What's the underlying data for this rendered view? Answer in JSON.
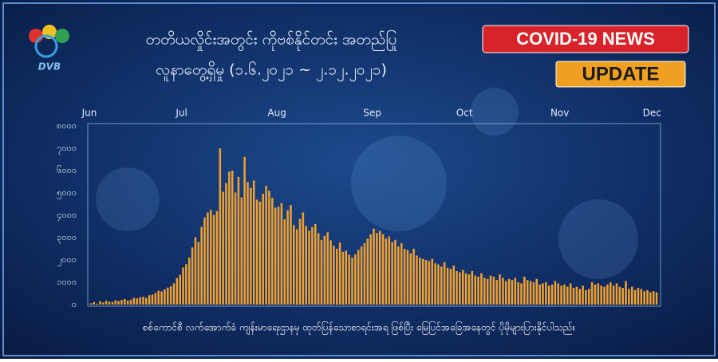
{
  "chart_data": {
    "type": "bar",
    "title": "တတိယလှိုင်းအတွင်း ကိုဗစ်နိုင်တင်း အတည်ပြု",
    "subtitle": "လူနာတွေ့ရှိမှု (၁.၆.၂၀၂၁ ~ ၂.၁၂.၂၀၂၁)",
    "logo_text": "DVB",
    "badge": [
      "COVID-19 NEWS",
      "UPDATE"
    ],
    "footnote": "စစ်ကောင်စီ လက်အောက်ခံ ကျန်းမာရေးဌာနမှ ထုတ်ပြန်သောစာရင်းအရ ဖြစ်ပြီး မြေပြင်အခြေအနေတွင် ပိုမိုများပြားနိုင်ပါသည်။",
    "color": "#f0a030",
    "grid": false,
    "ylim": [
      0,
      8000
    ],
    "yticks": [
      {
        "value": 0,
        "label": "၀"
      },
      {
        "value": 1000,
        "label": "၁၀၀၀"
      },
      {
        "value": 2000,
        "label": "၂၀၀၀"
      },
      {
        "value": 3000,
        "label": "၃၀၀၀"
      },
      {
        "value": 4000,
        "label": "၄၀၀၀"
      },
      {
        "value": 5000,
        "label": "၅၀၀၀"
      },
      {
        "value": 6000,
        "label": "၆၀၀၀"
      },
      {
        "value": 7000,
        "label": "၇၀၀၀"
      },
      {
        "value": 8000,
        "label": "၈၀၀၀"
      }
    ],
    "categories": [
      "Jun",
      null,
      null,
      null,
      null,
      null,
      null,
      null,
      null,
      null,
      null,
      null,
      null,
      null,
      null,
      null,
      null,
      null,
      null,
      null,
      null,
      null,
      null,
      null,
      null,
      null,
      null,
      null,
      null,
      null,
      "Jul",
      null,
      null,
      null,
      null,
      null,
      null,
      null,
      null,
      null,
      null,
      null,
      null,
      null,
      null,
      null,
      null,
      null,
      null,
      null,
      null,
      null,
      null,
      null,
      null,
      null,
      null,
      null,
      null,
      null,
      null,
      "Aug",
      null,
      null,
      null,
      null,
      null,
      null,
      null,
      null,
      null,
      null,
      null,
      null,
      null,
      null,
      null,
      null,
      null,
      null,
      null,
      null,
      null,
      null,
      null,
      null,
      null,
      null,
      null,
      null,
      null,
      null,
      "Sep",
      null,
      null,
      null,
      null,
      null,
      null,
      null,
      null,
      null,
      null,
      null,
      null,
      null,
      null,
      null,
      null,
      null,
      null,
      null,
      null,
      null,
      null,
      null,
      null,
      null,
      null,
      null,
      null,
      null,
      "Oct",
      null,
      null,
      null,
      null,
      null,
      null,
      null,
      null,
      null,
      null,
      null,
      null,
      null,
      null,
      null,
      null,
      null,
      null,
      null,
      null,
      null,
      null,
      null,
      null,
      null,
      null,
      null,
      null,
      null,
      null,
      "Nov",
      null,
      null,
      null,
      null,
      null,
      null,
      null,
      null,
      null,
      null,
      null,
      null,
      null,
      null,
      null,
      null,
      null,
      null,
      null,
      null,
      null,
      null,
      null,
      null,
      null,
      null,
      null,
      null,
      null,
      "Dec",
      null
    ],
    "values": [
      60,
      110,
      40,
      150,
      90,
      170,
      130,
      120,
      190,
      160,
      210,
      250,
      180,
      220,
      300,
      280,
      330,
      350,
      300,
      420,
      450,
      520,
      620,
      590,
      680,
      760,
      820,
      950,
      1190,
      1330,
      1660,
      1810,
      2100,
      2560,
      3020,
      2810,
      3480,
      3900,
      4130,
      4240,
      4010,
      4190,
      7000,
      5050,
      5440,
      5950,
      6000,
      5020,
      5720,
      4800,
      6620,
      5490,
      5230,
      5560,
      4700,
      4610,
      4960,
      5320,
      5100,
      4780,
      4340,
      4390,
      4550,
      3820,
      4230,
      4460,
      3560,
      3380,
      3840,
      4130,
      3520,
      3310,
      3470,
      3610,
      3200,
      2900,
      3080,
      3240,
      2880,
      2630,
      2500,
      2780,
      2360,
      2410,
      2230,
      2100,
      2250,
      2450,
      2600,
      2750,
      2950,
      3150,
      3400,
      3200,
      3300,
      3150,
      2950,
      3050,
      2800,
      2900,
      2600,
      2750,
      2500,
      2450,
      2300,
      2500,
      2200,
      2100,
      2050,
      2000,
      1950,
      2050,
      1850,
      1800,
      1700,
      1900,
      1650,
      1600,
      1750,
      1500,
      1450,
      1550,
      1400,
      1350,
      1500,
      1300,
      1250,
      1400,
      1200,
      1150,
      1300,
      1250,
      1100,
      1350,
      1200,
      1050,
      1150,
      1100,
      1200,
      1000,
      950,
      1250,
      1100,
      1050,
      1000,
      1150,
      900,
      950,
      1000,
      850,
      900,
      1050,
      950,
      850,
      900,
      800,
      950,
      750,
      800,
      700,
      850,
      650,
      700,
      1000,
      900,
      950,
      850,
      800,
      900,
      1000,
      850,
      950,
      800,
      750,
      1050,
      700,
      800,
      650,
      750,
      700,
      600,
      650,
      550,
      600,
      550
    ]
  }
}
